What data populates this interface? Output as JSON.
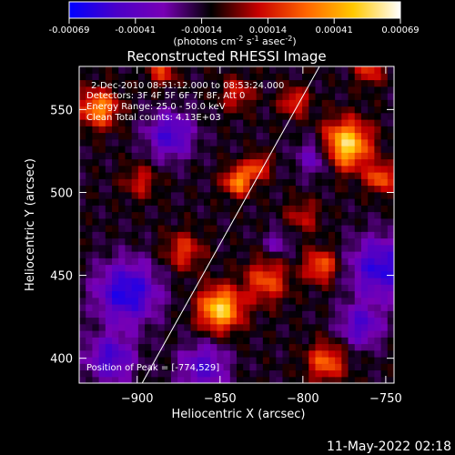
{
  "colorbar": {
    "ticks": [
      "-0.00069",
      "-0.00041",
      "-0.00014",
      "0.00014",
      "0.00041",
      "0.00069"
    ],
    "units_prefix": "(photons cm",
    "units_exp1": "-2",
    "units_mid": " s",
    "units_exp2": "-1",
    "units_mid2": " asec",
    "units_exp3": "-2",
    "units_suffix": ")",
    "colors": [
      "#0000ff",
      "#4b00c8",
      "#7800b4",
      "#000000",
      "#c80000",
      "#ff6400",
      "#ffc800",
      "#ffffff"
    ]
  },
  "annotations": {
    "time_range": "2-Dec-2010 08:51:12.000 to 08:53:24.000",
    "detectors": "Detectors: 3F 4F 5F 6F 7F 8F, Att 0",
    "energy_range": "Energy Range: 25.0 - 50.0 keV",
    "clean_counts": "Clean     Total counts: 4.13E+03",
    "peak_position": "Position of Peak = [-774,529]"
  },
  "footer": {
    "timestamp": "11-May-2022 02:18"
  },
  "chart_data": {
    "type": "heatmap",
    "title": "Reconstructed RHESSI Image",
    "xlabel": "Heliocentric X (arcsec)",
    "ylabel": "Heliocentric Y (arcsec)",
    "xlim": [
      -935,
      -745
    ],
    "ylim": [
      385,
      576
    ],
    "xticks": [
      -900,
      -850,
      -800,
      -750
    ],
    "yticks": [
      400,
      450,
      500,
      550
    ],
    "value_range": [
      -0.00069,
      0.00069
    ],
    "peak": [
      -774,
      529
    ],
    "limb_line": [
      [
        -897,
        385
      ],
      [
        -790,
        576
      ]
    ],
    "sources": [
      {
        "x": -850,
        "y": 430,
        "amp": 0.00066,
        "sigma": 9
      },
      {
        "x": -774,
        "y": 529,
        "amp": 0.00069,
        "sigma": 10
      },
      {
        "x": -839,
        "y": 507,
        "amp": 0.0005,
        "sigma": 6
      },
      {
        "x": -827,
        "y": 516,
        "amp": 0.00036,
        "sigma": 5
      },
      {
        "x": -923,
        "y": 551,
        "amp": 0.0005,
        "sigma": 8
      },
      {
        "x": -789,
        "y": 456,
        "amp": 0.0004,
        "sigma": 7
      },
      {
        "x": -822,
        "y": 447,
        "amp": 0.00036,
        "sigma": 9
      },
      {
        "x": -872,
        "y": 465,
        "amp": 0.0003,
        "sigma": 8
      },
      {
        "x": -753,
        "y": 509,
        "amp": 0.0004,
        "sigma": 6
      },
      {
        "x": -786,
        "y": 398,
        "amp": 0.0004,
        "sigma": 8
      },
      {
        "x": -840,
        "y": 560,
        "amp": 0.00026,
        "sigma": 7
      },
      {
        "x": -885,
        "y": 573,
        "amp": 0.0003,
        "sigma": 6
      },
      {
        "x": -898,
        "y": 507,
        "amp": 0.00024,
        "sigma": 7
      },
      {
        "x": -805,
        "y": 555,
        "amp": 0.00032,
        "sigma": 6
      },
      {
        "x": -800,
        "y": 486,
        "amp": 0.00022,
        "sigma": 7
      },
      {
        "x": -760,
        "y": 574,
        "amp": 0.0003,
        "sigma": 6
      },
      {
        "x": -906,
        "y": 440,
        "amp": -0.0005,
        "sigma": 13
      },
      {
        "x": -753,
        "y": 455,
        "amp": -0.00046,
        "sigma": 13
      },
      {
        "x": -880,
        "y": 535,
        "amp": -0.0004,
        "sigma": 10
      },
      {
        "x": -860,
        "y": 395,
        "amp": -0.00036,
        "sigma": 10
      },
      {
        "x": -916,
        "y": 400,
        "amp": -0.0004,
        "sigma": 10
      },
      {
        "x": -792,
        "y": 522,
        "amp": -0.0003,
        "sigma": 8
      },
      {
        "x": -765,
        "y": 420,
        "amp": -0.00036,
        "sigma": 9
      },
      {
        "x": -815,
        "y": 470,
        "amp": -0.0002,
        "sigma": 6
      }
    ]
  }
}
